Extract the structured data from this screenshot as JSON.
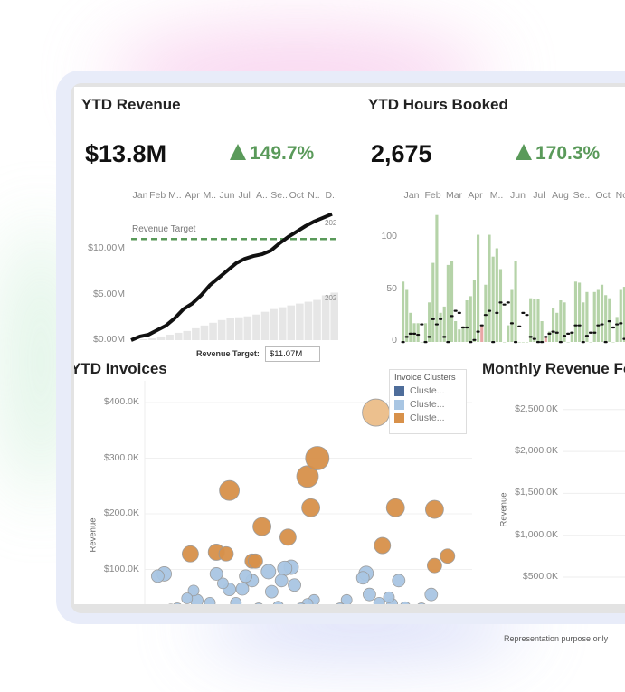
{
  "note": "Representation purpose only",
  "colors": {
    "accent_green": "#5a9a5a",
    "bar_green": "#b5d3a8",
    "bar_pink": "#e9a6a6",
    "cluster_dark": "#4e6d9a",
    "cluster_light": "#a9c6e3",
    "cluster_orange": "#d8914a"
  },
  "ytd_revenue": {
    "title": "YTD Revenue",
    "value": "$13.8M",
    "change": "149.7%",
    "change_icon": "triangle-up-icon",
    "chart_data": {
      "type": "line",
      "months": [
        "Jan",
        "Feb",
        "M..",
        "Apr",
        "M..",
        "Jun",
        "Jul",
        "A..",
        "Se..",
        "Oct",
        "N..",
        "D.."
      ],
      "y_ticks": [
        "$0.00M",
        "$5.00M",
        "$10.00M"
      ],
      "ylim": [
        0,
        14
      ],
      "target_label": "Revenue Target",
      "target": 11.07,
      "series_label_current": "202",
      "series_label_prior": "202",
      "current": [
        0,
        0.4,
        0.6,
        1.1,
        1.6,
        2.4,
        3.4,
        4.0,
        4.9,
        6.0,
        6.8,
        7.6,
        8.4,
        8.9,
        9.2,
        9.4,
        9.8,
        10.6,
        11.3,
        11.9,
        12.5,
        13.0,
        13.4,
        13.8
      ],
      "prior": [
        0,
        0.1,
        0.2,
        0.4,
        0.6,
        0.8,
        1.0,
        1.3,
        1.6,
        1.9,
        2.2,
        2.4,
        2.5,
        2.6,
        2.8,
        3.1,
        3.4,
        3.6,
        3.8,
        4.0,
        4.2,
        4.4,
        4.9,
        5.2
      ]
    },
    "target_input": {
      "label": "Revenue Target:",
      "value": "$11.07M"
    }
  },
  "ytd_hours": {
    "title": "YTD Hours Booked",
    "value": "2,675",
    "change": "170.3%",
    "change_icon": "triangle-up-icon",
    "chart_data": {
      "type": "bar",
      "months": [
        "Jan",
        "Feb",
        "Mar",
        "Apr",
        "M..",
        "Jun",
        "Jul",
        "Aug",
        "Se..",
        "Oct",
        "Nov"
      ],
      "y_ticks": [
        "0",
        "50",
        "100"
      ],
      "ylim": [
        0,
        125
      ],
      "values": [
        58,
        50,
        28,
        18,
        18,
        0,
        18,
        38,
        76,
        122,
        28,
        34,
        74,
        78,
        20,
        12,
        15,
        40,
        44,
        60,
        103,
        16,
        55,
        103,
        82,
        90,
        70,
        0,
        16,
        50,
        78,
        0,
        0,
        0,
        42,
        41,
        41,
        20,
        5,
        10,
        33,
        28,
        40,
        38,
        0,
        10,
        58,
        57,
        38,
        48,
        0,
        48,
        50,
        55,
        45,
        42,
        0,
        24,
        50,
        53,
        45,
        46
      ],
      "negative_flags": [
        21,
        38
      ],
      "markers": [
        0,
        5,
        8,
        8,
        7,
        17,
        0,
        5,
        22,
        17,
        22,
        5,
        0,
        25,
        30,
        28,
        14,
        14,
        0,
        2,
        10,
        16,
        26,
        30,
        0,
        28,
        38,
        36,
        38,
        18,
        0,
        15,
        28,
        26,
        5,
        3,
        0,
        0,
        5,
        8,
        10,
        9,
        0,
        6,
        8,
        9,
        16,
        16,
        0,
        6,
        9,
        9,
        16,
        17,
        0,
        20,
        14,
        17,
        18,
        3,
        0,
        11,
        20,
        23,
        18,
        14
      ]
    }
  },
  "ytd_invoices": {
    "title": "YTD Invoices",
    "chart_data": {
      "type": "scatter",
      "ylabel": "Revenue",
      "y_ticks": [
        "$100.0K",
        "$200.0K",
        "$300.0K",
        "$400.0K"
      ],
      "ylim": [
        0,
        410
      ],
      "legend": {
        "title": "Invoice Clusters",
        "items": [
          "Cluste...",
          "Cluste...",
          "Cluste..."
        ]
      },
      "points": [
        [
          14,
          128,
          9,
          2
        ],
        [
          22,
          131,
          9,
          2
        ],
        [
          26,
          242,
          11,
          2
        ],
        [
          25,
          128,
          8,
          2
        ],
        [
          33,
          115,
          8,
          2
        ],
        [
          34,
          115,
          8,
          2
        ],
        [
          36,
          177,
          10,
          2
        ],
        [
          44,
          158,
          9,
          2
        ],
        [
          50,
          267,
          12,
          2
        ],
        [
          51,
          211,
          10,
          2
        ],
        [
          53,
          300,
          13,
          2
        ],
        [
          71,
          382,
          15,
          3
        ],
        [
          73,
          143,
          9,
          2
        ],
        [
          77,
          211,
          10,
          2
        ],
        [
          89,
          208,
          10,
          2
        ],
        [
          89,
          107,
          8,
          2
        ],
        [
          93,
          124,
          8,
          2
        ],
        [
          4,
          88,
          7,
          1
        ],
        [
          6,
          92,
          8,
          1
        ],
        [
          9,
          20,
          6,
          1
        ],
        [
          10,
          30,
          6,
          1
        ],
        [
          13,
          48,
          6,
          1
        ],
        [
          15,
          62,
          6,
          1
        ],
        [
          16,
          44,
          7,
          1
        ],
        [
          19,
          15,
          6,
          1
        ],
        [
          20,
          40,
          6,
          1
        ],
        [
          22,
          92,
          7,
          1
        ],
        [
          24,
          75,
          6,
          1
        ],
        [
          26,
          64,
          7,
          1
        ],
        [
          28,
          40,
          6,
          1
        ],
        [
          30,
          65,
          7,
          1
        ],
        [
          31,
          88,
          7,
          1
        ],
        [
          33,
          80,
          7,
          1
        ],
        [
          35,
          30,
          6,
          1
        ],
        [
          38,
          96,
          8,
          1
        ],
        [
          39,
          60,
          7,
          1
        ],
        [
          41,
          33,
          6,
          1
        ],
        [
          42,
          80,
          7,
          1
        ],
        [
          43,
          102,
          8,
          1
        ],
        [
          45,
          104,
          8,
          1
        ],
        [
          46,
          72,
          7,
          1
        ],
        [
          48,
          30,
          6,
          1
        ],
        [
          50,
          38,
          6,
          1
        ],
        [
          52,
          45,
          6,
          1
        ],
        [
          56,
          15,
          6,
          1
        ],
        [
          58,
          25,
          6,
          1
        ],
        [
          60,
          30,
          6,
          1
        ],
        [
          62,
          45,
          6,
          1
        ],
        [
          67,
          85,
          7,
          1
        ],
        [
          68,
          93,
          8,
          1
        ],
        [
          69,
          55,
          7,
          1
        ],
        [
          70,
          20,
          6,
          1
        ],
        [
          72,
          40,
          6,
          1
        ],
        [
          75,
          50,
          6,
          1
        ],
        [
          76,
          38,
          6,
          1
        ],
        [
          78,
          80,
          7,
          1
        ],
        [
          80,
          32,
          6,
          1
        ],
        [
          83,
          22,
          6,
          1
        ],
        [
          85,
          30,
          6,
          1
        ],
        [
          88,
          55,
          7,
          1
        ],
        [
          91,
          20,
          6,
          1
        ],
        [
          93,
          25,
          6,
          1
        ],
        [
          8,
          28,
          6,
          1
        ],
        [
          36,
          22,
          6,
          1
        ],
        [
          54,
          22,
          6,
          1
        ]
      ]
    }
  },
  "monthly_forecast": {
    "title": "Monthly Revenue Fo",
    "chart_data": {
      "type": "line",
      "ylabel": "Revenue",
      "y_ticks": [
        "$500.0K",
        "$1,000.0K",
        "$1,500.0K",
        "$2,000.0K",
        "$2,500.0K"
      ]
    }
  }
}
